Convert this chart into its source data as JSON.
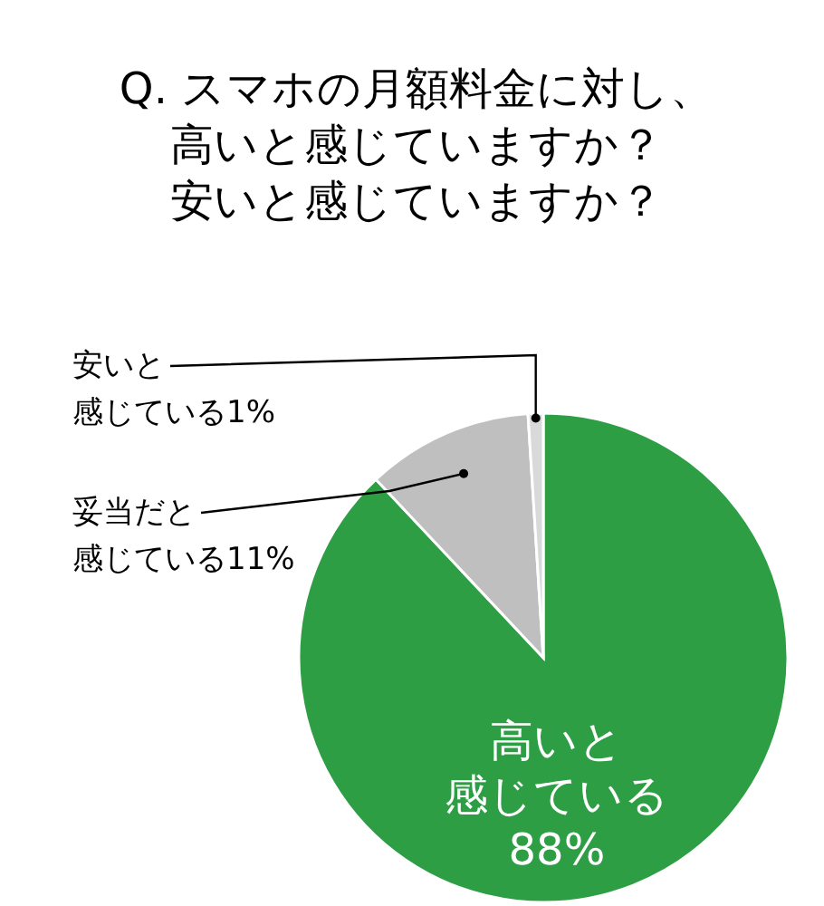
{
  "chart_data": {
    "type": "pie",
    "title": "Q. スマホの月額料金に対し、高いと感じていますか？安いと感じていますか？",
    "categories": [
      "高いと感じている",
      "妥当だと感じている",
      "安いと感じている"
    ],
    "values": [
      88,
      11,
      1
    ],
    "value_labels": [
      "88%",
      "11%",
      "1%"
    ],
    "colors": [
      "#2e9e44",
      "#bfbfbf",
      "#d9d9d9"
    ]
  }
}
